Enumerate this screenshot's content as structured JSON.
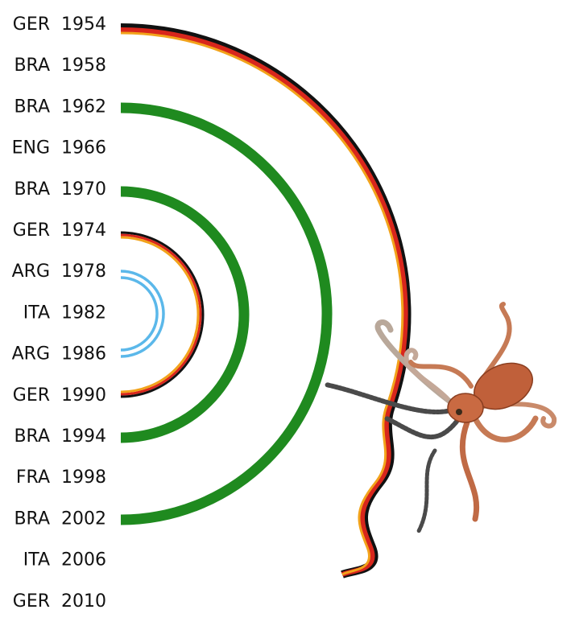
{
  "rows": [
    {
      "team": "GER",
      "year": "1954"
    },
    {
      "team": "BRA",
      "year": "1958"
    },
    {
      "team": "BRA",
      "year": "1962"
    },
    {
      "team": "ENG",
      "year": "1966"
    },
    {
      "team": "BRA",
      "year": "1970"
    },
    {
      "team": "GER",
      "year": "1974"
    },
    {
      "team": "ARG",
      "year": "1978"
    },
    {
      "team": "ITA",
      "year": "1982"
    },
    {
      "team": "ARG",
      "year": "1986"
    },
    {
      "team": "GER",
      "year": "1990"
    },
    {
      "team": "BRA",
      "year": "1994"
    },
    {
      "team": "FRA",
      "year": "1998"
    },
    {
      "team": "BRA",
      "year": "2002"
    },
    {
      "team": "ITA",
      "year": "2006"
    },
    {
      "team": "GER",
      "year": "2010"
    }
  ]
}
